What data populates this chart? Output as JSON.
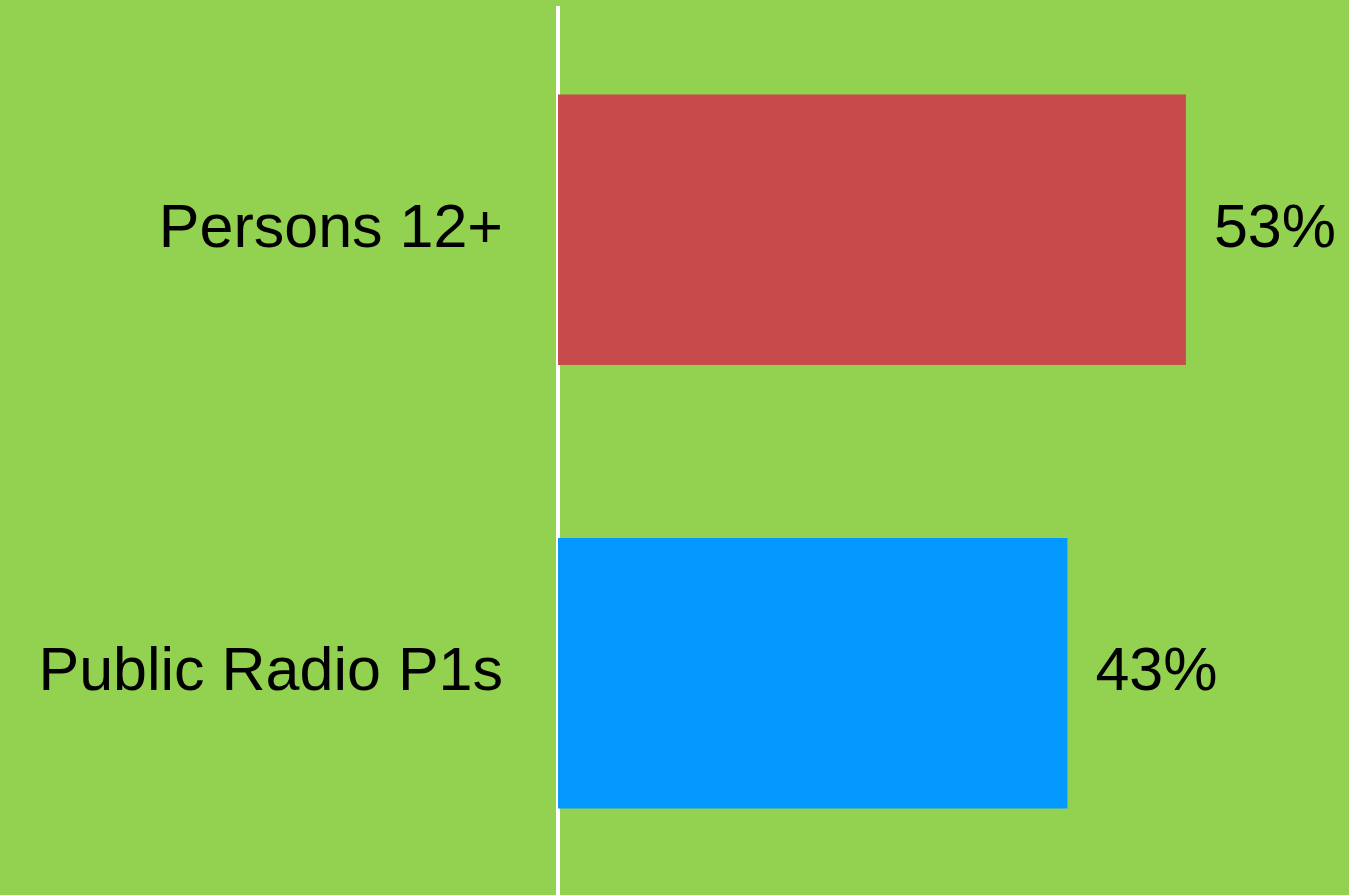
{
  "chart_data": {
    "type": "bar",
    "orientation": "horizontal",
    "categories": [
      "Persons 12+",
      "Public Radio P1s"
    ],
    "values": [
      53,
      43
    ],
    "colors": [
      "#c84b4b",
      "#0499fe"
    ],
    "value_labels": [
      "53%",
      "43%"
    ],
    "tick_labels": "y"
  }
}
